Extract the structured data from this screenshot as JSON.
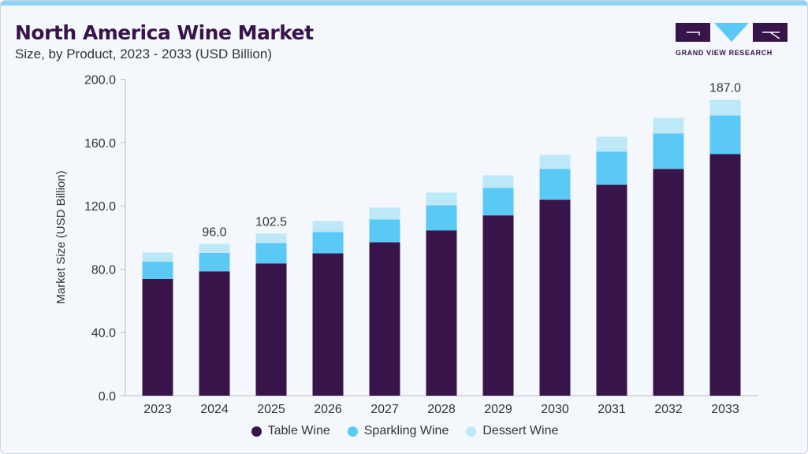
{
  "header": {
    "title": "North America Wine Market",
    "subtitle": "Size, by Product, 2023 - 2033 (USD Billion)"
  },
  "logo": {
    "text": "GRAND VIEW RESEARCH"
  },
  "chart_data": {
    "type": "bar",
    "stacked": true,
    "ylabel": "Market Size (USD Billion)",
    "xlabel": "",
    "ylim": [
      0,
      200
    ],
    "yticks": [
      "0.0",
      "40.0",
      "80.0",
      "120.0",
      "160.0",
      "200.0"
    ],
    "categories": [
      "2023",
      "2024",
      "2025",
      "2026",
      "2027",
      "2028",
      "2029",
      "2030",
      "2031",
      "2032",
      "2033"
    ],
    "series": [
      {
        "name": "Table Wine",
        "color": "#371449",
        "values": [
          73.8,
          78.6,
          83.6,
          90.0,
          97.0,
          104.5,
          114.0,
          123.9,
          133.3,
          143.3,
          152.7
        ]
      },
      {
        "name": "Sparkling Wine",
        "color": "#5bc9f5",
        "values": [
          10.9,
          11.6,
          12.9,
          13.5,
          14.4,
          15.9,
          17.3,
          19.4,
          20.9,
          22.4,
          24.4
        ]
      },
      {
        "name": "Dessert Wine",
        "color": "#bde8f8",
        "values": [
          5.8,
          5.8,
          6.0,
          6.9,
          7.5,
          8.0,
          8.0,
          8.9,
          9.5,
          9.9,
          9.9
        ]
      }
    ],
    "data_labels": [
      {
        "category": "2024",
        "text": "96.0"
      },
      {
        "category": "2025",
        "text": "102.5"
      },
      {
        "category": "2033",
        "text": "187.0"
      }
    ],
    "legend_position": "bottom",
    "grid": false
  }
}
